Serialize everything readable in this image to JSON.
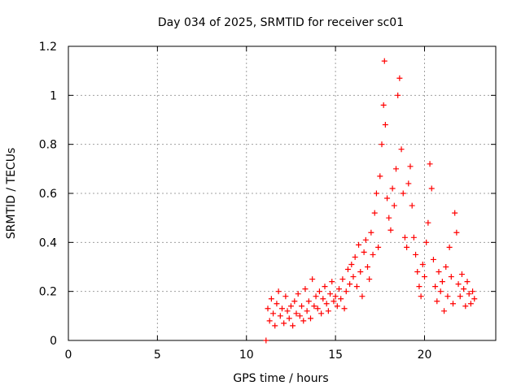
{
  "chart_data": {
    "type": "scatter",
    "title": "Day 034 of 2025, SRMTID for receiver sc01",
    "xlabel": "GPS time / hours",
    "ylabel": "SRMTID / TECUs",
    "xlim": [
      0,
      24
    ],
    "ylim": [
      0,
      1.2
    ],
    "xticks": [
      0,
      5,
      10,
      15,
      20
    ],
    "xtick_labels": [
      "0",
      "5",
      "10",
      "15",
      "20"
    ],
    "yticks": [
      0,
      0.2,
      0.4,
      0.6,
      0.8,
      1.0,
      1.2
    ],
    "ytick_labels": [
      "0",
      "0.2",
      "0.4",
      "0.6",
      "0.8",
      "1",
      "1.2"
    ],
    "grid": true,
    "marker": "+",
    "series": [
      {
        "name": "sc01",
        "color": "#ff0000",
        "points": [
          [
            11.1,
            0.0
          ],
          [
            11.2,
            0.13
          ],
          [
            11.3,
            0.08
          ],
          [
            11.4,
            0.17
          ],
          [
            11.5,
            0.11
          ],
          [
            11.6,
            0.06
          ],
          [
            11.7,
            0.15
          ],
          [
            11.8,
            0.2
          ],
          [
            11.9,
            0.1
          ],
          [
            12.0,
            0.13
          ],
          [
            12.1,
            0.07
          ],
          [
            12.2,
            0.18
          ],
          [
            12.3,
            0.12
          ],
          [
            12.4,
            0.09
          ],
          [
            12.5,
            0.14
          ],
          [
            12.6,
            0.06
          ],
          [
            12.7,
            0.16
          ],
          [
            12.8,
            0.11
          ],
          [
            12.9,
            0.19
          ],
          [
            13.0,
            0.1
          ],
          [
            13.1,
            0.14
          ],
          [
            13.2,
            0.08
          ],
          [
            13.3,
            0.21
          ],
          [
            13.4,
            0.12
          ],
          [
            13.5,
            0.16
          ],
          [
            13.6,
            0.09
          ],
          [
            13.7,
            0.25
          ],
          [
            13.8,
            0.14
          ],
          [
            13.9,
            0.18
          ],
          [
            14.0,
            0.13
          ],
          [
            14.1,
            0.2
          ],
          [
            14.2,
            0.11
          ],
          [
            14.3,
            0.17
          ],
          [
            14.4,
            0.22
          ],
          [
            14.5,
            0.15
          ],
          [
            14.6,
            0.12
          ],
          [
            14.7,
            0.19
          ],
          [
            14.8,
            0.24
          ],
          [
            14.9,
            0.16
          ],
          [
            15.0,
            0.18
          ],
          [
            15.1,
            0.14
          ],
          [
            15.2,
            0.21
          ],
          [
            15.3,
            0.17
          ],
          [
            15.4,
            0.25
          ],
          [
            15.5,
            0.13
          ],
          [
            15.6,
            0.2
          ],
          [
            15.7,
            0.29
          ],
          [
            15.8,
            0.23
          ],
          [
            15.9,
            0.31
          ],
          [
            16.0,
            0.26
          ],
          [
            16.1,
            0.34
          ],
          [
            16.2,
            0.22
          ],
          [
            16.3,
            0.39
          ],
          [
            16.4,
            0.28
          ],
          [
            16.5,
            0.18
          ],
          [
            16.6,
            0.36
          ],
          [
            16.7,
            0.41
          ],
          [
            16.8,
            0.3
          ],
          [
            16.9,
            0.25
          ],
          [
            17.0,
            0.44
          ],
          [
            17.1,
            0.35
          ],
          [
            17.2,
            0.52
          ],
          [
            17.3,
            0.6
          ],
          [
            17.4,
            0.38
          ],
          [
            17.5,
            0.67
          ],
          [
            17.6,
            0.8
          ],
          [
            17.7,
            0.96
          ],
          [
            17.75,
            1.14
          ],
          [
            17.8,
            0.88
          ],
          [
            17.9,
            0.58
          ],
          [
            18.0,
            0.5
          ],
          [
            18.1,
            0.45
          ],
          [
            18.2,
            0.62
          ],
          [
            18.3,
            0.55
          ],
          [
            18.4,
            0.7
          ],
          [
            18.5,
            1.0
          ],
          [
            18.6,
            1.07
          ],
          [
            18.7,
            0.78
          ],
          [
            18.8,
            0.6
          ],
          [
            18.9,
            0.42
          ],
          [
            19.0,
            0.38
          ],
          [
            19.1,
            0.64
          ],
          [
            19.2,
            0.71
          ],
          [
            19.3,
            0.55
          ],
          [
            19.4,
            0.42
          ],
          [
            19.5,
            0.35
          ],
          [
            19.6,
            0.28
          ],
          [
            19.7,
            0.22
          ],
          [
            19.8,
            0.18
          ],
          [
            19.9,
            0.31
          ],
          [
            20.0,
            0.26
          ],
          [
            20.1,
            0.4
          ],
          [
            20.2,
            0.48
          ],
          [
            20.3,
            0.72
          ],
          [
            20.4,
            0.62
          ],
          [
            20.5,
            0.33
          ],
          [
            20.6,
            0.22
          ],
          [
            20.7,
            0.16
          ],
          [
            20.8,
            0.28
          ],
          [
            20.9,
            0.2
          ],
          [
            21.0,
            0.24
          ],
          [
            21.1,
            0.12
          ],
          [
            21.2,
            0.3
          ],
          [
            21.3,
            0.18
          ],
          [
            21.4,
            0.38
          ],
          [
            21.5,
            0.26
          ],
          [
            21.6,
            0.15
          ],
          [
            21.7,
            0.52
          ],
          [
            21.8,
            0.44
          ],
          [
            21.9,
            0.23
          ],
          [
            22.0,
            0.18
          ],
          [
            22.1,
            0.27
          ],
          [
            22.2,
            0.21
          ],
          [
            22.3,
            0.14
          ],
          [
            22.4,
            0.24
          ],
          [
            22.5,
            0.19
          ],
          [
            22.6,
            0.15
          ],
          [
            22.7,
            0.2
          ],
          [
            22.8,
            0.17
          ]
        ]
      }
    ]
  }
}
